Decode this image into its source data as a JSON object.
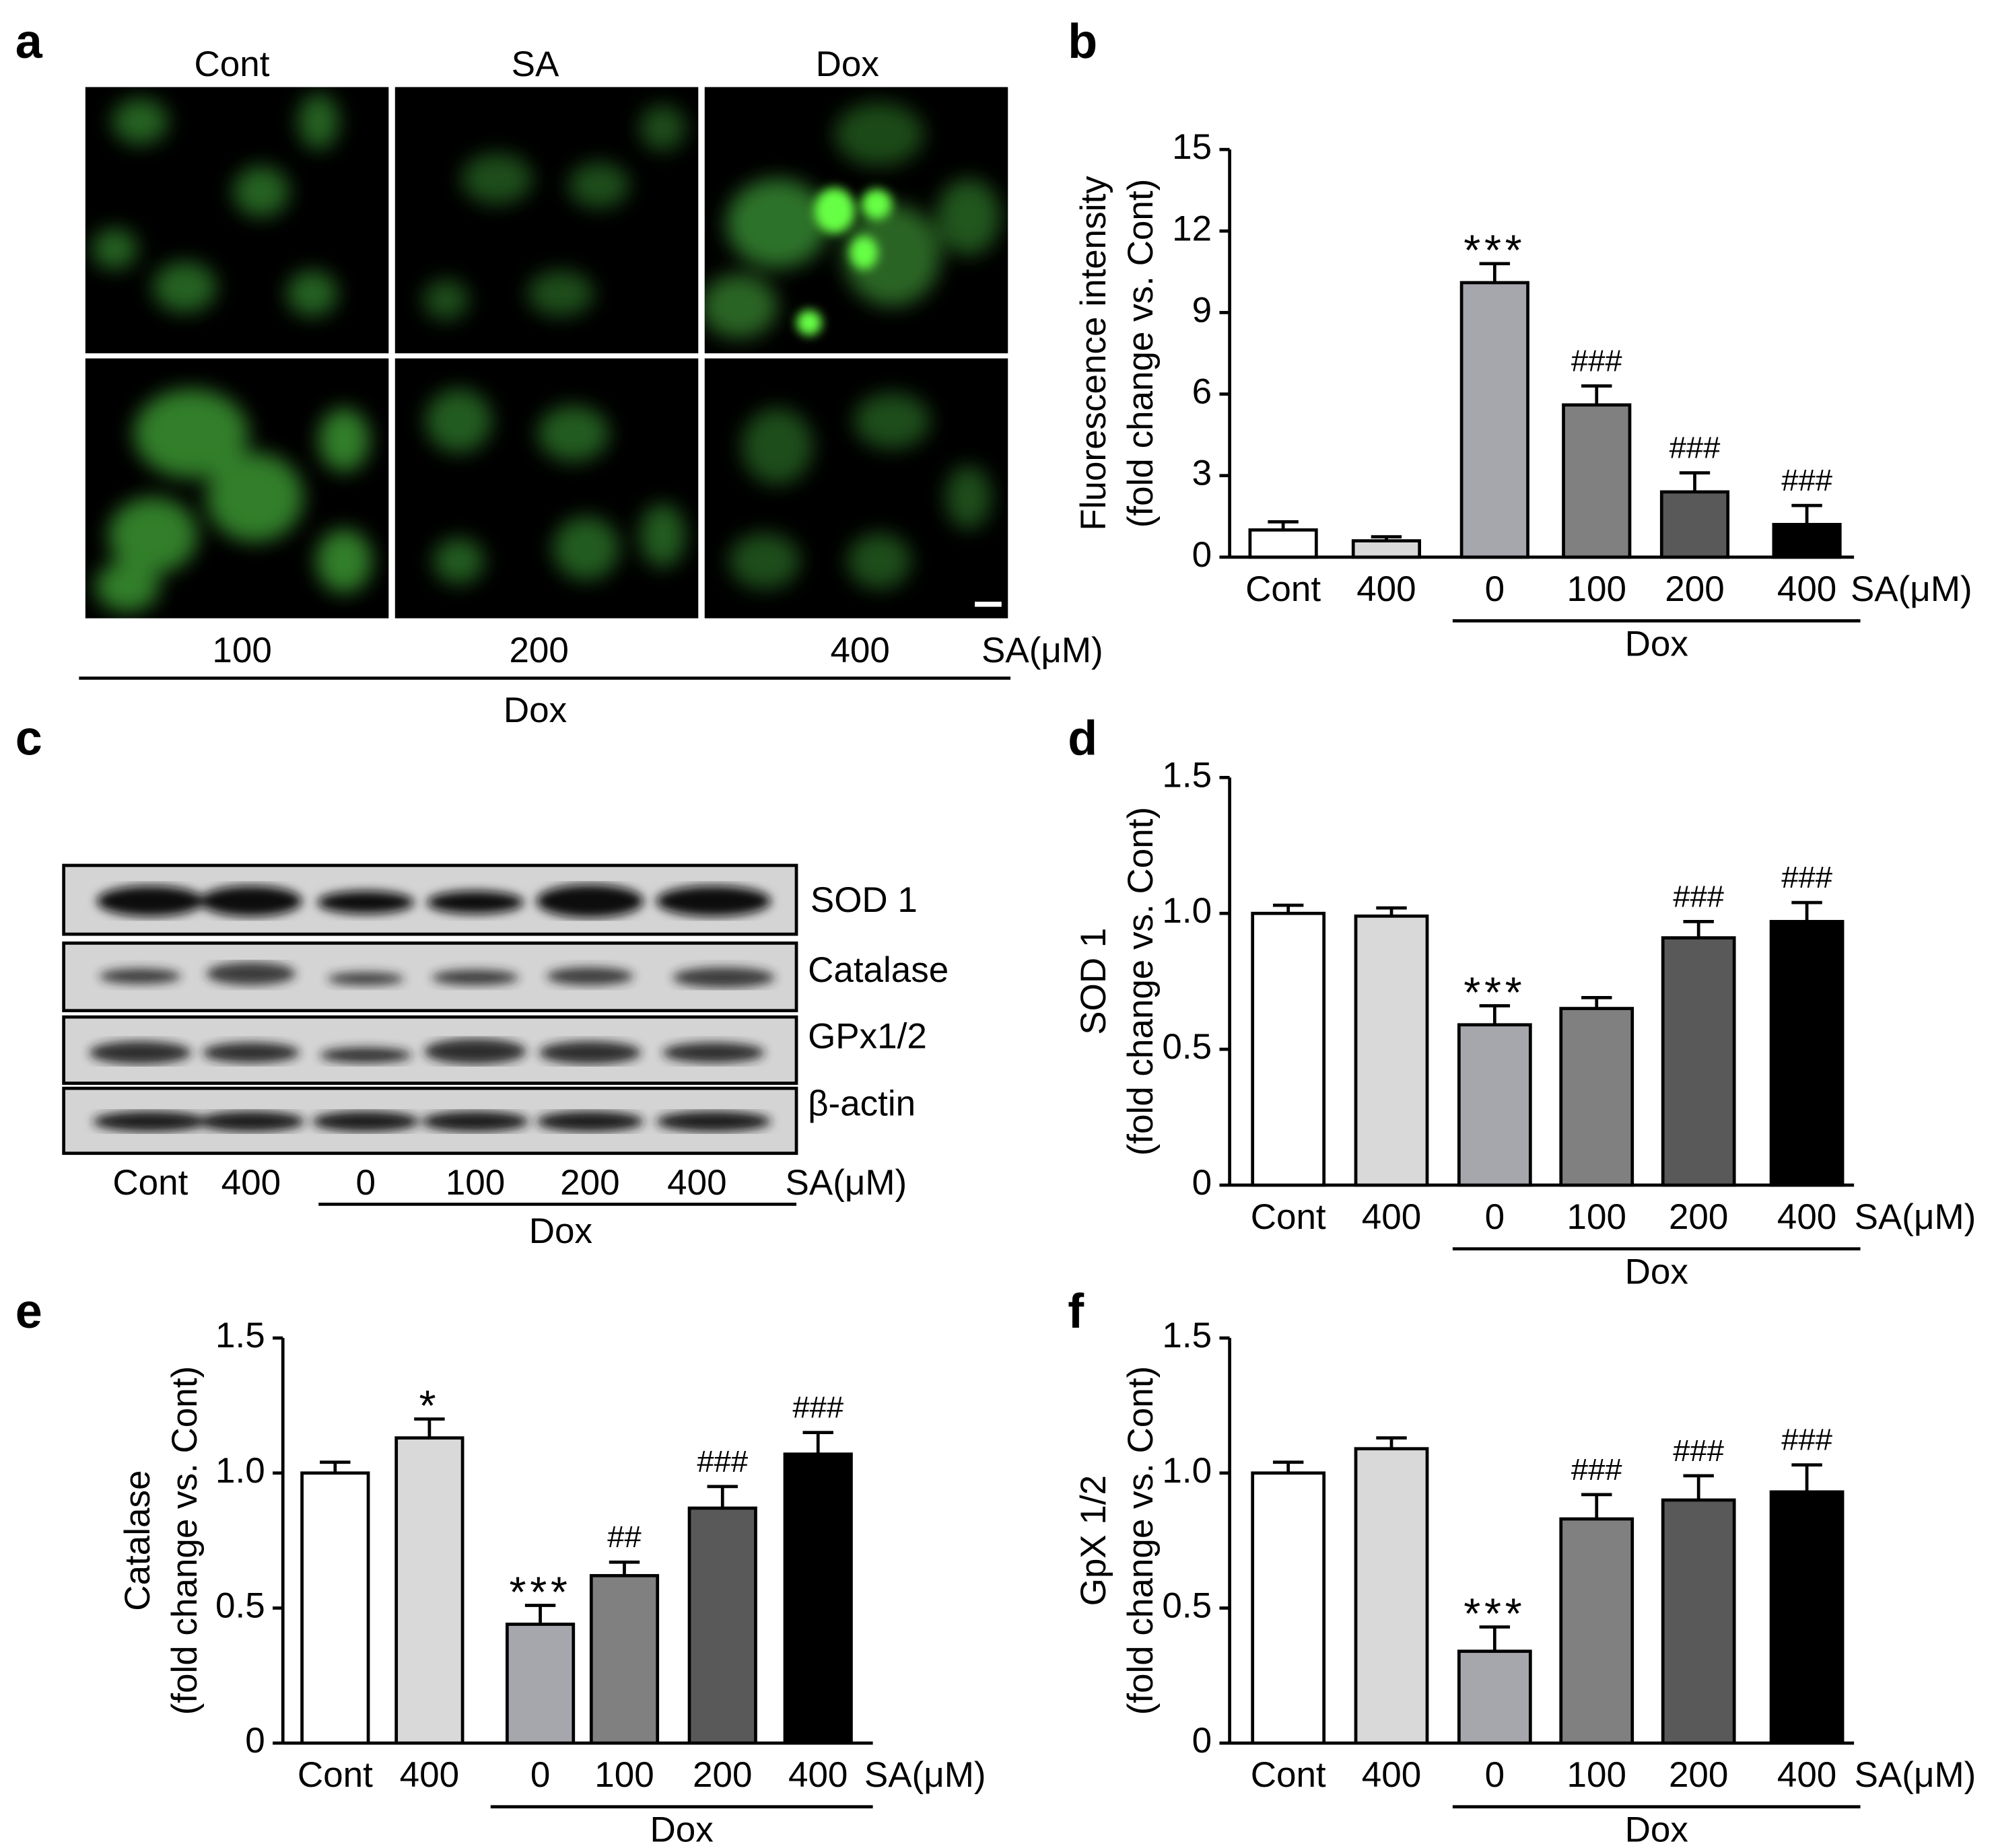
{
  "panel_labels": [
    "a",
    "b",
    "c",
    "d",
    "e",
    "f"
  ],
  "micrographs": {
    "column_labels": [
      "Cont",
      "SA",
      "Dox"
    ],
    "row2_labels": [
      "100",
      "200",
      "400"
    ],
    "unit": "SA(μM)",
    "group": "Dox"
  },
  "blot": {
    "bands": [
      "SOD 1",
      "Catalase",
      "GPx1/2",
      "β-actin"
    ],
    "lanes": [
      "Cont",
      "400",
      "0",
      "100",
      "200",
      "400"
    ],
    "unit": "SA(μM)",
    "group": "Dox"
  },
  "chart_data": [
    {
      "type": "bar",
      "ylabel": [
        "Fluorescence intensity",
        "(fold change vs. Cont)"
      ],
      "categories": [
        "Cont",
        "400",
        "0",
        "100",
        "200",
        "400"
      ],
      "unit": "SA(μM)",
      "group": "Dox",
      "values": [
        1.0,
        0.6,
        10.1,
        5.6,
        2.4,
        1.2
      ],
      "errors": [
        0.3,
        0.15,
        0.7,
        0.7,
        0.7,
        0.7
      ],
      "annotations": [
        null,
        null,
        "***",
        "###",
        "###",
        "###"
      ],
      "colors": [
        "#ffffff",
        "#d9d9d9",
        "#a6a6ad",
        "#808080",
        "#595959",
        "#000000"
      ],
      "ylim": [
        0,
        15
      ],
      "yticks": [
        0,
        3,
        6,
        9,
        12,
        15
      ]
    },
    {
      "type": "bar",
      "ylabel": [
        "SOD 1",
        "(fold change vs. Cont)"
      ],
      "categories": [
        "Cont",
        "400",
        "0",
        "100",
        "200",
        "400"
      ],
      "unit": "SA(μM)",
      "group": "Dox",
      "values": [
        1.0,
        0.99,
        0.59,
        0.65,
        0.91,
        0.97
      ],
      "errors": [
        0.03,
        0.03,
        0.07,
        0.04,
        0.06,
        0.07
      ],
      "annotations": [
        null,
        null,
        "***",
        null,
        "###",
        "###"
      ],
      "colors": [
        "#ffffff",
        "#d9d9d9",
        "#a6a6ad",
        "#808080",
        "#595959",
        "#000000"
      ],
      "ylim": [
        0,
        1.5
      ],
      "yticks": [
        0,
        0.5,
        {
          "value": 1,
          "label": "1.0"
        },
        1.5
      ]
    },
    {
      "type": "bar",
      "ylabel": [
        "Catalase",
        "(fold change vs. Cont)"
      ],
      "categories": [
        "Cont",
        "400",
        "0",
        "100",
        "200",
        "400"
      ],
      "unit": "SA(μM)",
      "group": "Dox",
      "values": [
        1.0,
        1.13,
        0.44,
        0.62,
        0.87,
        1.07
      ],
      "errors": [
        0.04,
        0.07,
        0.07,
        0.05,
        0.08,
        0.08
      ],
      "annotations": [
        null,
        "*",
        "***",
        "##",
        "###",
        "###"
      ],
      "colors": [
        "#ffffff",
        "#d9d9d9",
        "#a6a6ad",
        "#808080",
        "#595959",
        "#000000"
      ],
      "ylim": [
        0,
        1.5
      ],
      "yticks": [
        0,
        0.5,
        {
          "value": 1,
          "label": "1.0"
        },
        1.5
      ]
    },
    {
      "type": "bar",
      "ylabel": [
        "GpX 1/2",
        "(fold change vs. Cont)"
      ],
      "categories": [
        "Cont",
        "400",
        "0",
        "100",
        "200",
        "400"
      ],
      "unit": "SA(μM)",
      "group": "Dox",
      "values": [
        1.0,
        1.09,
        0.34,
        0.83,
        0.9,
        0.93
      ],
      "errors": [
        0.04,
        0.04,
        0.09,
        0.09,
        0.09,
        0.1
      ],
      "annotations": [
        null,
        null,
        "***",
        "###",
        "###",
        "###"
      ],
      "colors": [
        "#ffffff",
        "#d9d9d9",
        "#a6a6ad",
        "#808080",
        "#595959",
        "#000000"
      ],
      "ylim": [
        0,
        1.5
      ],
      "yticks": [
        0,
        0.5,
        {
          "value": 1,
          "label": "1.0"
        },
        1.5
      ]
    }
  ]
}
